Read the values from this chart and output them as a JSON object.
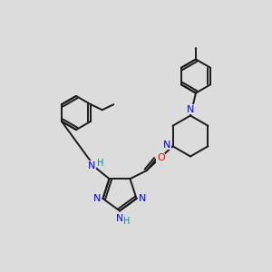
{
  "bg_color": "#dcdcdc",
  "bond_color": "#1a1a1a",
  "N_color": "#0000ff",
  "O_color": "#ff0000",
  "H_color": "#008b8b",
  "line_width": 1.4,
  "fig_size": [
    3.0,
    3.0
  ],
  "dpi": 100,
  "xlim": [
    0,
    10
  ],
  "ylim": [
    0,
    10
  ]
}
